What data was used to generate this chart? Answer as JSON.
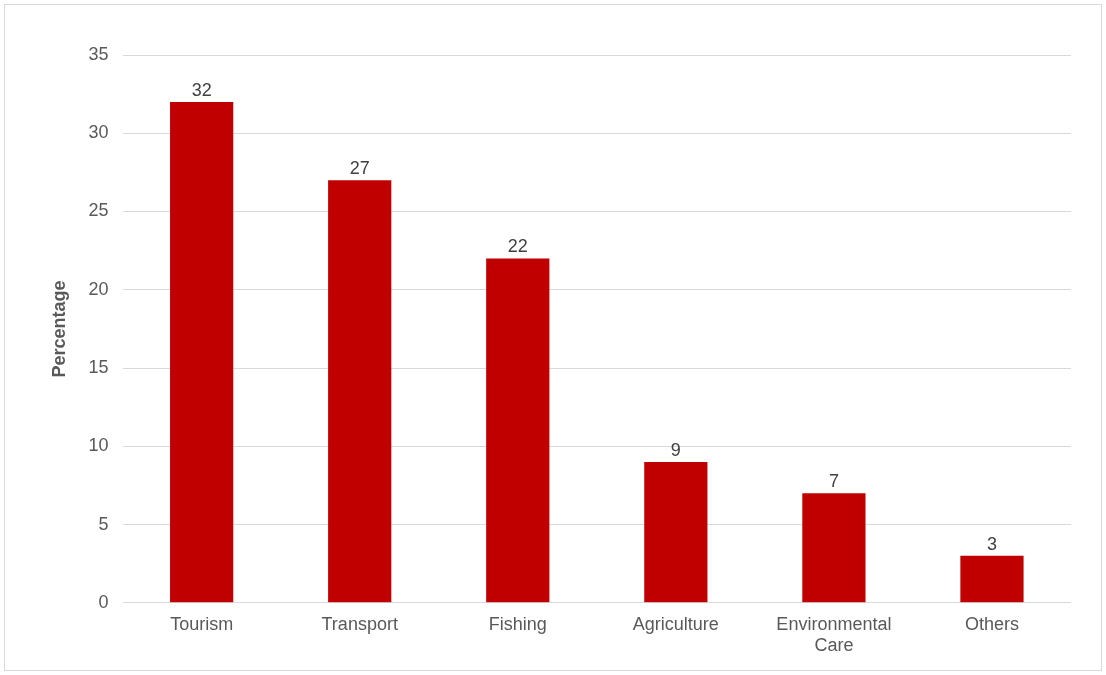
{
  "chart_data": {
    "type": "bar",
    "ylabel": "Percentage",
    "categories": [
      "Tourism",
      "Transport",
      "Fishing",
      "Agriculture",
      "Environmental Care",
      "Others"
    ],
    "values": [
      32,
      27,
      22,
      9,
      7,
      3
    ],
    "color": "#c00000",
    "ylim": [
      0,
      35
    ],
    "yticks": [
      0,
      5,
      10,
      15,
      20,
      25,
      30,
      35
    ],
    "grid": "y",
    "data_labels": true,
    "legend": false
  }
}
